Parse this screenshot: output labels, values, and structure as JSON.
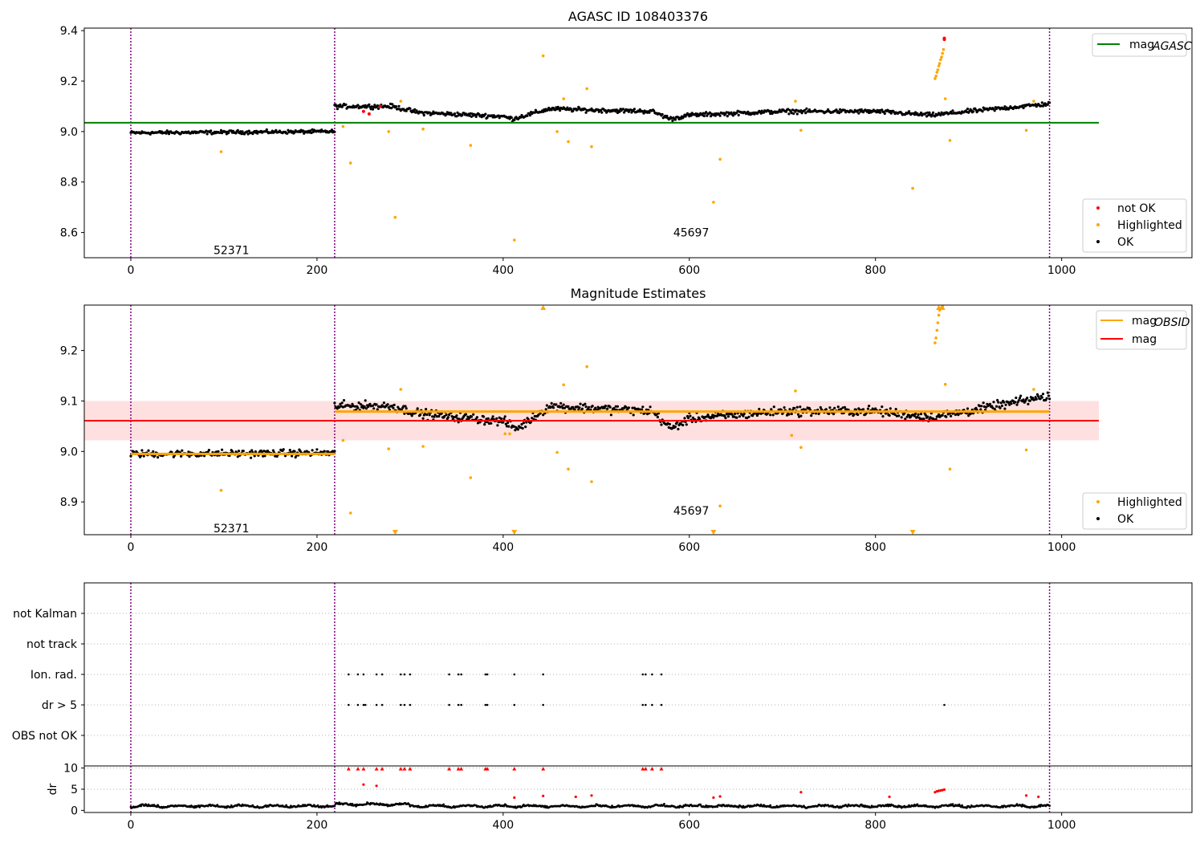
{
  "figure": {
    "title_top": "AGASC ID 108403376",
    "title_middle": "Magnitude Estimates"
  },
  "colors": {
    "ok": "#000000",
    "highlighted": "#ffa500",
    "not_ok": "#ff0000",
    "agasc_line": "#008000",
    "obs_mean": "#ffa500",
    "mag_line": "#ff0000",
    "mag_band": "#ffcccc",
    "obs_divider": "#800080",
    "grid": "#b0b0b0"
  },
  "chart_data": [
    {
      "type": "scatter",
      "title": "AGASC ID 108403376",
      "xlim": [
        -50,
        1140
      ],
      "ylim": [
        8.5,
        9.41
      ],
      "xticks": [
        0,
        200,
        400,
        600,
        800,
        1000
      ],
      "yticks": [
        8.6,
        8.8,
        9.0,
        9.2,
        9.4
      ],
      "ytick_labels": [
        "8.6",
        "8.8",
        "9.0",
        "9.2",
        "9.4"
      ],
      "obs_boundaries": [
        0,
        219,
        987
      ],
      "obsid_labels": [
        {
          "text": "52371",
          "x": 108,
          "y": 8.53
        },
        {
          "text": "45697",
          "x": 602,
          "y": 8.6
        }
      ],
      "reference_line": {
        "name": "mag_AGASC",
        "y": 9.035,
        "x": [
          -50,
          1040
        ]
      },
      "legend_top": [
        {
          "label": "mag",
          "sub": "AGASC",
          "style": "line",
          "color": "#008000"
        }
      ],
      "legend_bottom": [
        {
          "label": "not OK",
          "style": "marker",
          "color": "#ff0000"
        },
        {
          "label": "Highlighted",
          "style": "marker",
          "color": "#ffa500"
        },
        {
          "label": "OK",
          "style": "marker",
          "color": "#000000"
        }
      ],
      "ok_segments": [
        {
          "x0": 0,
          "x1": 219,
          "level": [
            [
              0,
              8.995
            ],
            [
              219,
              9.0
            ]
          ],
          "noise": 0.01
        },
        {
          "x0": 219,
          "x1": 987,
          "level": [
            [
              219,
              9.1
            ],
            [
              280,
              9.1
            ],
            [
              310,
              9.075
            ],
            [
              400,
              9.06
            ],
            [
              410,
              9.05
            ],
            [
              450,
              9.09
            ],
            [
              500,
              9.085
            ],
            [
              560,
              9.08
            ],
            [
              580,
              9.05
            ],
            [
              600,
              9.065
            ],
            [
              700,
              9.08
            ],
            [
              800,
              9.08
            ],
            [
              860,
              9.065
            ],
            [
              900,
              9.08
            ],
            [
              987,
              9.11
            ]
          ],
          "noise": 0.012
        }
      ],
      "not_ok_points": [
        [
          250,
          9.08
        ],
        [
          256,
          9.07
        ],
        [
          268,
          9.1
        ],
        [
          874,
          9.37
        ],
        [
          874,
          9.365
        ]
      ],
      "highlighted_points": [
        [
          97,
          8.92
        ],
        [
          228,
          9.02
        ],
        [
          236,
          8.875
        ],
        [
          277,
          9.0
        ],
        [
          284,
          8.66
        ],
        [
          290,
          9.12
        ],
        [
          314,
          9.01
        ],
        [
          365,
          8.945
        ],
        [
          412,
          8.57
        ],
        [
          443,
          9.3
        ],
        [
          458,
          9.0
        ],
        [
          465,
          9.13
        ],
        [
          470,
          8.96
        ],
        [
          490,
          9.17
        ],
        [
          495,
          8.94
        ],
        [
          626,
          8.72
        ],
        [
          633,
          8.89
        ],
        [
          714,
          9.12
        ],
        [
          720,
          9.005
        ],
        [
          840,
          8.775
        ],
        [
          864,
          9.21
        ],
        [
          865,
          9.22
        ],
        [
          866,
          9.235
        ],
        [
          867,
          9.245
        ],
        [
          868,
          9.26
        ],
        [
          869,
          9.27
        ],
        [
          870,
          9.285
        ],
        [
          871,
          9.295
        ],
        [
          872,
          9.31
        ],
        [
          873,
          9.325
        ],
        [
          875,
          9.13
        ],
        [
          880,
          8.965
        ],
        [
          962,
          9.005
        ],
        [
          970,
          9.12
        ]
      ]
    },
    {
      "type": "scatter",
      "title": "Magnitude Estimates",
      "xlim": [
        -50,
        1140
      ],
      "ylim": [
        8.835,
        9.29
      ],
      "xticks": [
        0,
        200,
        400,
        600,
        800,
        1000
      ],
      "yticks": [
        8.9,
        9.0,
        9.1,
        9.2
      ],
      "ytick_labels": [
        "8.9",
        "9.0",
        "9.1",
        "9.2"
      ],
      "obs_boundaries": [
        0,
        219,
        987
      ],
      "obsid_labels": [
        {
          "text": "52371",
          "x": 108,
          "y": 8.848
        },
        {
          "text": "45697",
          "x": 602,
          "y": 8.883
        }
      ],
      "mag_band": {
        "y0": 9.022,
        "y1": 9.1,
        "x": [
          -50,
          1040
        ]
      },
      "mag_line": {
        "name": "mag",
        "y": 9.061,
        "x": [
          -50,
          1040
        ]
      },
      "obs_means": [
        {
          "x": [
            0,
            219
          ],
          "y": 8.995
        },
        {
          "x": [
            219,
            987
          ],
          "y": 9.079
        }
      ],
      "legend_top": [
        {
          "label": "mag",
          "sub": "OBSID",
          "style": "line",
          "color": "#ffa500"
        },
        {
          "label": "mag",
          "sub": "",
          "style": "line",
          "color": "#ff0000"
        }
      ],
      "legend_bottom": [
        {
          "label": "Highlighted",
          "style": "marker",
          "color": "#ffa500"
        },
        {
          "label": "OK",
          "style": "marker",
          "color": "#000000"
        }
      ],
      "ok_segments": [
        {
          "x0": 0,
          "x1": 219,
          "level": [
            [
              0,
              8.995
            ],
            [
              219,
              8.997
            ]
          ],
          "noise": 0.01
        },
        {
          "x0": 219,
          "x1": 987,
          "level": [
            [
              219,
              9.09
            ],
            [
              280,
              9.09
            ],
            [
              310,
              9.075
            ],
            [
              400,
              9.06
            ],
            [
              415,
              9.045
            ],
            [
              450,
              9.09
            ],
            [
              500,
              9.085
            ],
            [
              560,
              9.08
            ],
            [
              580,
              9.045
            ],
            [
              600,
              9.065
            ],
            [
              700,
              9.08
            ],
            [
              800,
              9.08
            ],
            [
              860,
              9.068
            ],
            [
              900,
              9.08
            ],
            [
              987,
              9.11
            ]
          ],
          "noise": 0.013
        }
      ],
      "highlighted_points": [
        [
          97,
          8.923
        ],
        [
          228,
          9.022
        ],
        [
          236,
          8.878
        ],
        [
          277,
          9.005
        ],
        [
          290,
          9.123
        ],
        [
          314,
          9.01
        ],
        [
          365,
          8.948
        ],
        [
          402,
          9.035
        ],
        [
          407,
          9.035
        ],
        [
          458,
          8.998
        ],
        [
          465,
          9.132
        ],
        [
          470,
          8.965
        ],
        [
          490,
          9.168
        ],
        [
          495,
          8.94
        ],
        [
          633,
          8.892
        ],
        [
          710,
          9.032
        ],
        [
          714,
          9.12
        ],
        [
          720,
          9.008
        ],
        [
          864,
          9.215
        ],
        [
          865,
          9.225
        ],
        [
          866,
          9.24
        ],
        [
          867,
          9.255
        ],
        [
          868,
          9.27
        ],
        [
          869,
          9.28
        ],
        [
          870,
          9.283
        ],
        [
          871,
          9.285
        ],
        [
          872,
          9.287
        ],
        [
          875,
          9.133
        ],
        [
          880,
          8.965
        ],
        [
          962,
          9.003
        ],
        [
          970,
          9.123
        ]
      ],
      "clipped_markers": [
        {
          "x": 443,
          "edge": "top"
        },
        {
          "x": 868,
          "edge": "top"
        },
        {
          "x": 872,
          "edge": "top"
        },
        {
          "x": 284,
          "edge": "bottom"
        },
        {
          "x": 412,
          "edge": "bottom"
        },
        {
          "x": 626,
          "edge": "bottom"
        },
        {
          "x": 840,
          "edge": "bottom"
        }
      ]
    },
    {
      "type": "scatter",
      "title": "",
      "xlim": [
        -50,
        1140
      ],
      "categories": [
        "not Kalman",
        "not track",
        "Ion. rad.",
        "dr > 5",
        "OBS not OK"
      ],
      "obs_boundaries": [
        0,
        219,
        987
      ],
      "ion_rad_x": [
        234,
        244,
        250,
        264,
        270,
        290,
        294,
        300,
        342,
        352,
        355,
        381,
        383,
        412,
        443,
        550,
        553,
        560,
        570
      ],
      "dr_gt5_x": [
        234,
        244,
        250,
        252,
        264,
        270,
        290,
        294,
        300,
        342,
        352,
        355,
        381,
        383,
        412,
        443,
        550,
        553,
        560,
        570,
        874
      ]
    },
    {
      "type": "scatter",
      "title": "",
      "ylabel": "dr",
      "xlim": [
        -50,
        1140
      ],
      "ylim": [
        -0.5,
        10.5
      ],
      "xticks": [
        0,
        200,
        400,
        600,
        800,
        1000
      ],
      "yticks": [
        0,
        5,
        10
      ],
      "ytick_labels": [
        "0",
        "5",
        "10"
      ],
      "obs_boundaries": [
        0,
        219,
        987
      ],
      "clipped_red_x": [
        234,
        244,
        250,
        264,
        270,
        290,
        294,
        300,
        342,
        352,
        355,
        381,
        383,
        412,
        443,
        550,
        553,
        560,
        570
      ],
      "red_points": [
        [
          250,
          6.1
        ],
        [
          264,
          5.8
        ],
        [
          412,
          3.0
        ],
        [
          443,
          3.4
        ],
        [
          478,
          3.2
        ],
        [
          495,
          3.5
        ],
        [
          626,
          3.0
        ],
        [
          633,
          3.3
        ],
        [
          720,
          4.3
        ],
        [
          815,
          3.2
        ],
        [
          864,
          4.3
        ],
        [
          866,
          4.5
        ],
        [
          868,
          4.6
        ],
        [
          870,
          4.7
        ],
        [
          872,
          4.8
        ],
        [
          874,
          4.9
        ],
        [
          962,
          3.5
        ],
        [
          975,
          3.2
        ]
      ],
      "ok_level": 1.0
    }
  ]
}
